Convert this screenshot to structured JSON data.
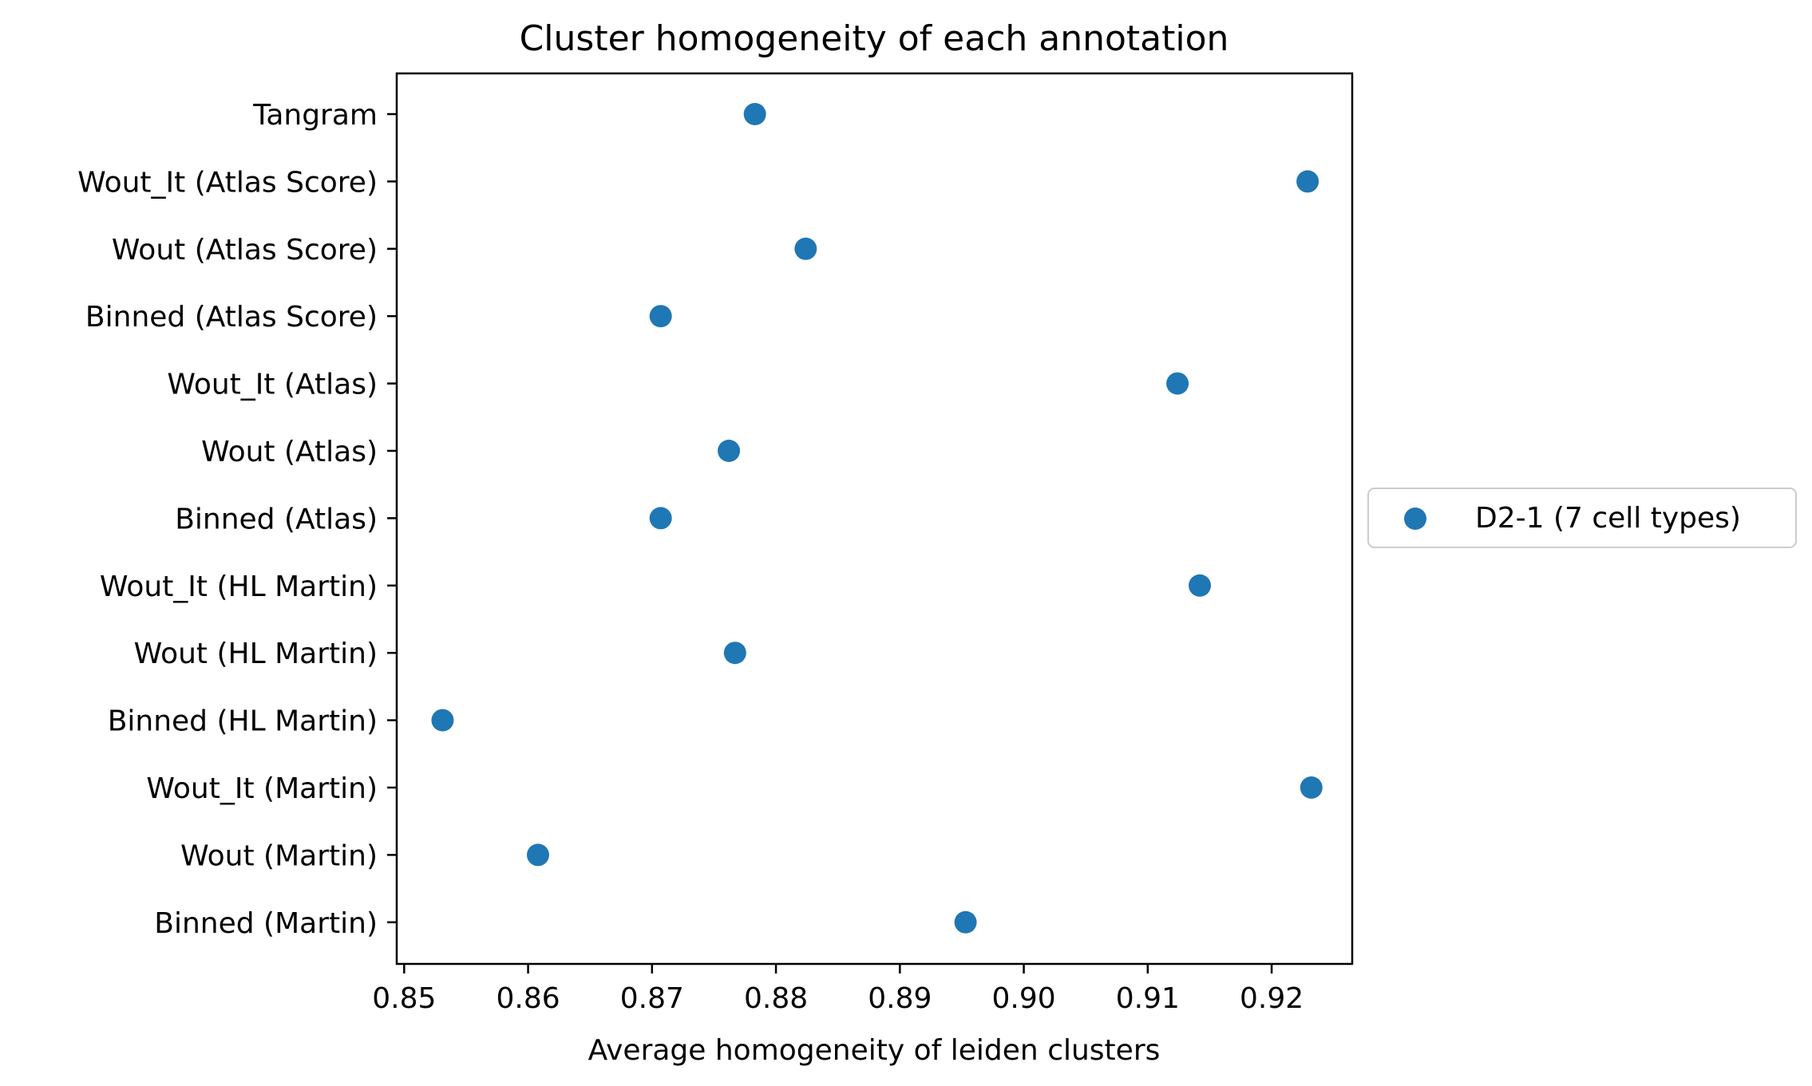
{
  "chart_data": {
    "type": "scatter",
    "title": "Cluster homogeneity of each annotation",
    "xlabel": "Average homogeneity of leiden clusters",
    "ylabel": "",
    "xlim": [
      0.8494,
      0.9265
    ],
    "xticks": [
      0.85,
      0.86,
      0.87,
      0.88,
      0.89,
      0.9,
      0.91,
      0.92
    ],
    "xtick_labels": [
      "0.85",
      "0.86",
      "0.87",
      "0.88",
      "0.89",
      "0.90",
      "0.91",
      "0.92"
    ],
    "grid": false,
    "legend_position": "outside-right",
    "categories": [
      "Tangram",
      "Wout_It (Atlas Score)",
      "Wout (Atlas Score)",
      "Binned (Atlas Score)",
      "Wout_It (Atlas)",
      "Wout (Atlas)",
      "Binned (Atlas)",
      "Wout_It (HL Martin)",
      "Wout (HL Martin)",
      "Binned (HL Martin)",
      "Wout_It (Martin)",
      "Wout (Martin)",
      "Binned (Martin)"
    ],
    "series": [
      {
        "name": "D2-1 (7 cell types)",
        "color": "#1f77b4",
        "values": [
          0.8783,
          0.9229,
          0.8824,
          0.8707,
          0.9124,
          0.8762,
          0.8707,
          0.9142,
          0.8767,
          0.8531,
          0.9232,
          0.8608,
          0.8953
        ]
      }
    ]
  }
}
